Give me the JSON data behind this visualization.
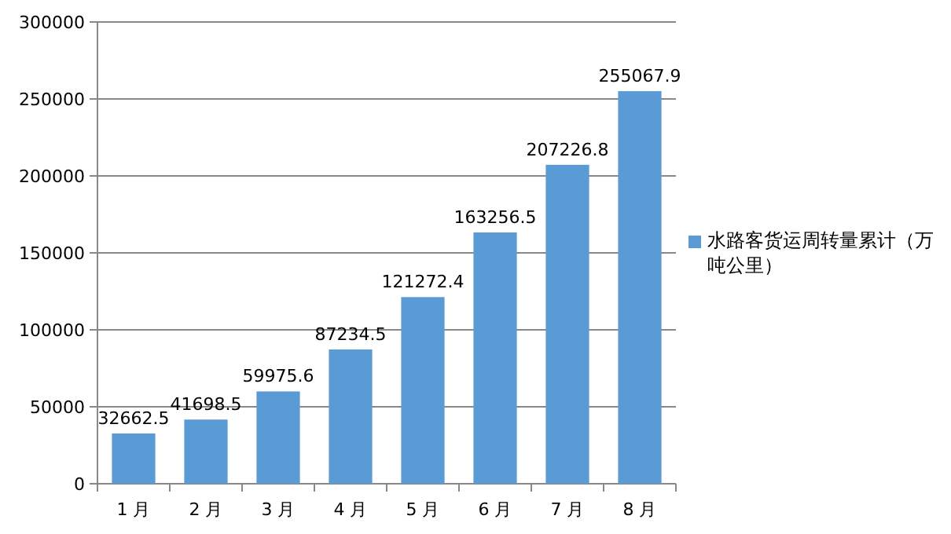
{
  "chart_data": {
    "type": "bar",
    "categories": [
      "1 月",
      "2 月",
      "3 月",
      "4 月",
      "5 月",
      "6 月",
      "7 月",
      "8 月"
    ],
    "series": [
      {
        "name": "水路客货运周转量累计（万吨公里）",
        "color": "#5b9bd5",
        "values": [
          32662.5,
          41698.5,
          59975.6,
          87234.5,
          121272.4,
          163256.5,
          207226.8,
          255067.9
        ]
      }
    ],
    "ylim": [
      0,
      300000
    ],
    "yticks": [
      0,
      50000,
      100000,
      150000,
      200000,
      250000,
      300000
    ],
    "grid": "y",
    "legend": "right",
    "data_labels": true
  }
}
